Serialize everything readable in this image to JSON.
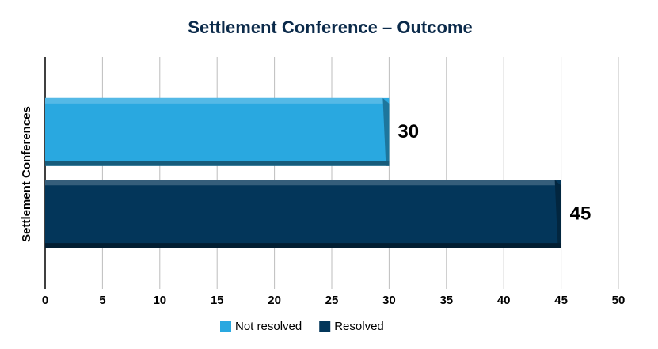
{
  "chart_data": {
    "type": "hbar",
    "title": "Settlement Conference – Outcome",
    "y_label": "Settlement Conferences",
    "categories": [
      null
    ],
    "series": [
      {
        "name": "Not resolved",
        "color": "#29a8e0",
        "values": [
          30
        ]
      },
      {
        "name": "Resolved",
        "color": "#03365a",
        "values": [
          45
        ]
      }
    ],
    "xlim": [
      0,
      50
    ],
    "xticks": [
      0,
      5,
      10,
      15,
      20,
      25,
      30,
      35,
      40,
      45,
      50
    ],
    "grid": true,
    "legend": "bottom"
  }
}
